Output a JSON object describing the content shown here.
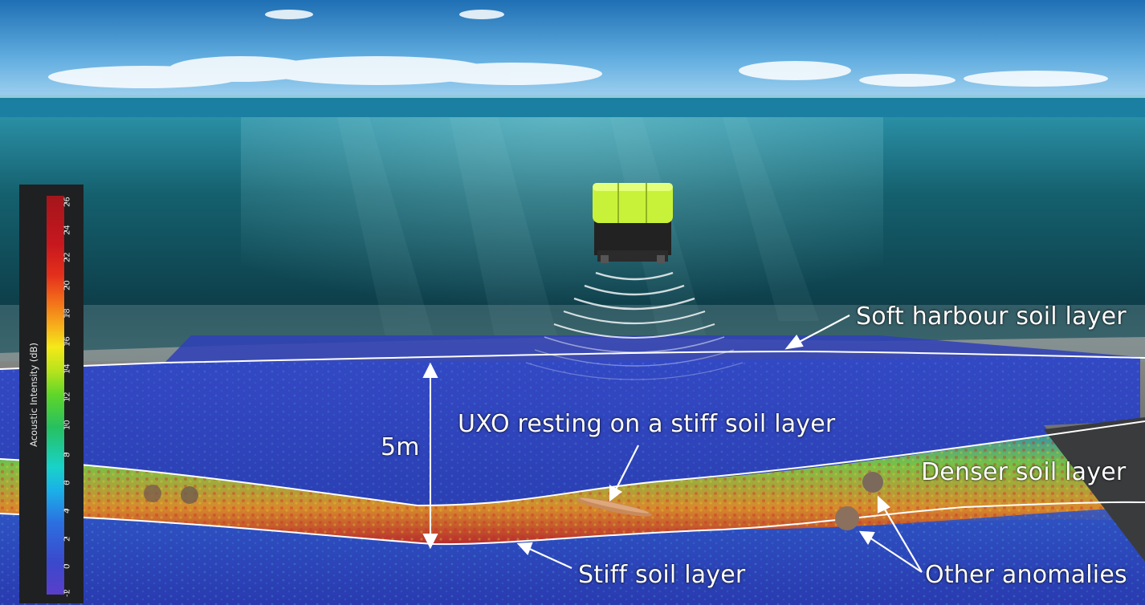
{
  "labels": {
    "soft_layer": "Soft harbour soil layer",
    "uxo": "UXO resting on a stiff soil layer",
    "depth": "5m",
    "denser_layer": "Denser soil layer",
    "stiff_layer": "Stiff soil layer",
    "other_anomalies": "Other anomalies"
  },
  "colorbar": {
    "title": "Acoustic Intensity (dB)",
    "ticks": [
      "-2",
      "0",
      "2",
      "4",
      "6",
      "8",
      "10",
      "12",
      "14",
      "16",
      "18",
      "20",
      "22",
      "24",
      "26"
    ]
  },
  "icons": [
    "rov-vehicle-icon",
    "sonar-wave-icon",
    "uxo-shell-icon",
    "anomaly-rock-icon"
  ],
  "colors": {
    "sky": "#2e7fc0",
    "water": "#0d4450",
    "seabed": "#8a8a86",
    "scan_low": "#2b3bb8",
    "scan_high": "#d8231b",
    "rov": "#c8f23a",
    "annotation": "#ffffff"
  }
}
